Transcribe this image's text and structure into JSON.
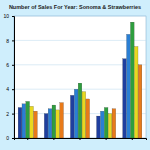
{
  "chart_data": {
    "type": "bar",
    "title": "Number of Sales For Year: Sonoma & Strawberries",
    "categories": [
      null,
      null,
      null,
      null,
      null
    ],
    "series": [
      {
        "color": "#1f3f9f",
        "values": [
          2.5,
          2.0,
          3.5,
          1.8,
          6.5
        ]
      },
      {
        "color": "#2a7fd4",
        "values": [
          2.8,
          2.4,
          4.0,
          2.2,
          8.5
        ]
      },
      {
        "color": "#2e9e3e",
        "values": [
          3.0,
          2.7,
          4.5,
          2.5,
          9.5
        ]
      },
      {
        "color": "#e8d820",
        "values": [
          2.6,
          2.3,
          3.8,
          2.0,
          7.5
        ]
      },
      {
        "color": "#e87a1a",
        "values": [
          2.2,
          2.9,
          3.2,
          2.4,
          6.0
        ]
      }
    ],
    "ylim": [
      0,
      10
    ],
    "yticks": [
      0,
      2,
      4,
      6,
      8,
      10
    ],
    "grid": true
  }
}
